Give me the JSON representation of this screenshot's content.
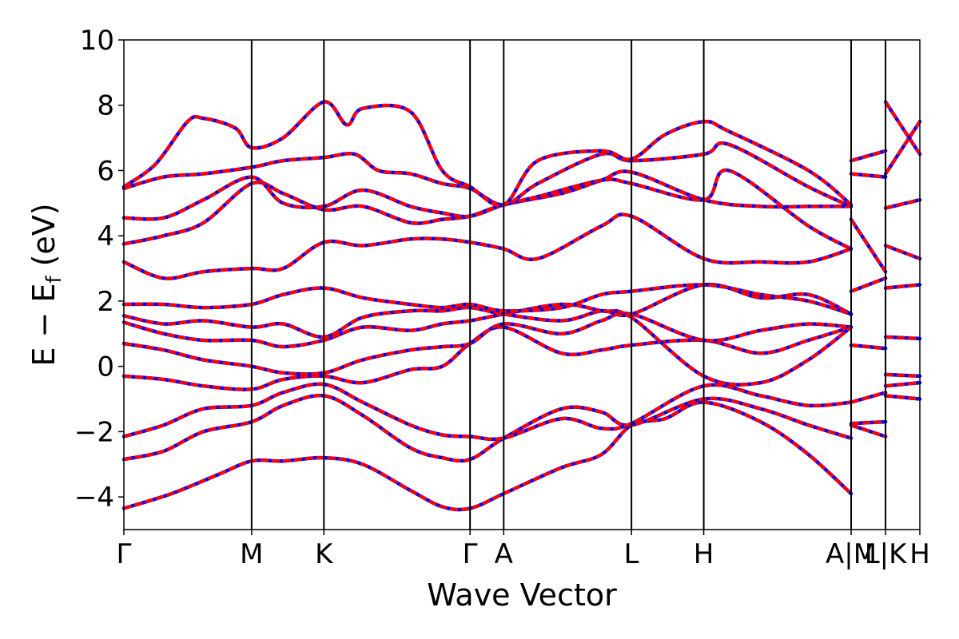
{
  "chart_data": {
    "type": "line",
    "xlabel": "Wave Vector",
    "ylabel": "E − E",
    "ylabel_sub": "f",
    "ylabel_unit": " (eV)",
    "ylim": [
      -5,
      10
    ],
    "y_ticks": [
      -4,
      -2,
      0,
      2,
      4,
      6,
      8,
      10
    ],
    "y_tick_labels": [
      "−4",
      "−2",
      "0",
      "2",
      "4",
      "6",
      "8",
      "10"
    ],
    "xlim": [
      0,
      1
    ],
    "k_points": [
      {
        "label": "Γ",
        "x": 0.0
      },
      {
        "label": "M",
        "x": 0.1605
      },
      {
        "label": "K",
        "x": 0.2513
      },
      {
        "label": "Γ",
        "x": 0.4349
      },
      {
        "label": "A",
        "x": 0.4772
      },
      {
        "label": "L",
        "x": 0.6377
      },
      {
        "label": "H",
        "x": 0.7285
      },
      {
        "label": "A|M",
        "x": 0.9137
      },
      {
        "label": "L|K",
        "x": 0.9569
      },
      {
        "label": "H",
        "x": 1.0
      }
    ],
    "series_colors": {
      "overlay": "#ff0000",
      "underlay": "#0000ff"
    },
    "bands": [
      [
        [
          0,
          -4.35
        ],
        [
          0.06,
          -3.9
        ],
        [
          0.12,
          -3.3
        ],
        [
          0.1605,
          -2.9
        ],
        [
          0.2,
          -2.9
        ],
        [
          0.2513,
          -2.8
        ],
        [
          0.3,
          -3.0
        ],
        [
          0.36,
          -3.8
        ],
        [
          0.4,
          -4.3
        ],
        [
          0.4349,
          -4.35
        ],
        [
          0.4772,
          -3.9
        ],
        [
          0.55,
          -3.1
        ],
        [
          0.6,
          -2.7
        ],
        [
          0.6377,
          -1.8
        ],
        [
          0.68,
          -1.6
        ],
        [
          0.7285,
          -1.1
        ],
        [
          0.8,
          -1.7
        ],
        [
          0.86,
          -2.7
        ],
        [
          0.9137,
          -3.9
        ]
      ],
      [
        [
          0,
          -2.85
        ],
        [
          0.05,
          -2.6
        ],
        [
          0.1,
          -2.0
        ],
        [
          0.1605,
          -1.7
        ],
        [
          0.2,
          -1.2
        ],
        [
          0.2513,
          -0.9
        ],
        [
          0.3,
          -1.5
        ],
        [
          0.36,
          -2.5
        ],
        [
          0.4,
          -2.8
        ],
        [
          0.4349,
          -2.85
        ],
        [
          0.4772,
          -2.2
        ],
        [
          0.55,
          -1.3
        ],
        [
          0.6,
          -1.4
        ],
        [
          0.6377,
          -1.8
        ],
        [
          0.7285,
          -1.0
        ],
        [
          0.8,
          -1.3
        ],
        [
          0.86,
          -1.8
        ],
        [
          0.9137,
          -2.2
        ]
      ],
      [
        [
          0,
          -2.15
        ],
        [
          0.05,
          -1.8
        ],
        [
          0.1,
          -1.3
        ],
        [
          0.1605,
          -1.2
        ],
        [
          0.2,
          -0.8
        ],
        [
          0.2513,
          -0.55
        ],
        [
          0.3,
          -1.1
        ],
        [
          0.36,
          -1.8
        ],
        [
          0.4,
          -2.1
        ],
        [
          0.4349,
          -2.15
        ],
        [
          0.4772,
          -2.2
        ],
        [
          0.55,
          -1.6
        ],
        [
          0.6,
          -1.9
        ],
        [
          0.6377,
          -1.75
        ],
        [
          0.7285,
          -0.6
        ],
        [
          0.8,
          -0.9
        ],
        [
          0.86,
          -1.2
        ],
        [
          0.9137,
          -1.1
        ]
      ],
      [
        [
          0,
          -0.3
        ],
        [
          0.05,
          -0.4
        ],
        [
          0.1,
          -0.6
        ],
        [
          0.1605,
          -0.7
        ],
        [
          0.2,
          -0.4
        ],
        [
          0.2513,
          -0.3
        ],
        [
          0.3,
          -0.5
        ],
        [
          0.36,
          -0.1
        ],
        [
          0.4,
          0.0
        ],
        [
          0.4349,
          0.7
        ],
        [
          0.4772,
          1.2
        ],
        [
          0.55,
          0.4
        ],
        [
          0.6,
          0.5
        ],
        [
          0.6377,
          0.65
        ],
        [
          0.7285,
          0.8
        ],
        [
          0.8,
          0.4
        ],
        [
          0.86,
          0.8
        ],
        [
          0.9137,
          1.2
        ]
      ],
      [
        [
          0,
          0.7
        ],
        [
          0.05,
          0.5
        ],
        [
          0.1,
          0.2
        ],
        [
          0.1605,
          0.0
        ],
        [
          0.2,
          -0.2
        ],
        [
          0.2513,
          -0.2
        ],
        [
          0.3,
          0.2
        ],
        [
          0.36,
          0.5
        ],
        [
          0.4,
          0.6
        ],
        [
          0.4349,
          0.7
        ],
        [
          0.4772,
          1.3
        ],
        [
          0.55,
          1.0
        ],
        [
          0.6,
          1.4
        ],
        [
          0.6377,
          1.6
        ],
        [
          0.7285,
          0.8
        ],
        [
          0.8,
          1.1
        ],
        [
          0.86,
          1.3
        ],
        [
          0.9137,
          1.2
        ]
      ],
      [
        [
          0,
          1.35
        ],
        [
          0.05,
          1.0
        ],
        [
          0.1,
          0.8
        ],
        [
          0.1605,
          0.8
        ],
        [
          0.2,
          0.6
        ],
        [
          0.2513,
          0.8
        ],
        [
          0.3,
          1.2
        ],
        [
          0.36,
          1.1
        ],
        [
          0.4,
          1.3
        ],
        [
          0.4349,
          1.4
        ],
        [
          0.4772,
          1.6
        ],
        [
          0.55,
          1.9
        ],
        [
          0.6,
          1.7
        ],
        [
          0.6377,
          1.5
        ],
        [
          0.7285,
          -0.3
        ],
        [
          0.8,
          -0.5
        ],
        [
          0.86,
          0.2
        ],
        [
          0.9137,
          1.2
        ]
      ],
      [
        [
          0,
          1.55
        ],
        [
          0.05,
          1.3
        ],
        [
          0.1,
          1.4
        ],
        [
          0.1605,
          1.2
        ],
        [
          0.2,
          1.3
        ],
        [
          0.2513,
          0.9
        ],
        [
          0.3,
          1.5
        ],
        [
          0.36,
          1.7
        ],
        [
          0.4,
          1.7
        ],
        [
          0.4349,
          1.8
        ],
        [
          0.4772,
          1.6
        ],
        [
          0.55,
          1.4
        ],
        [
          0.6,
          1.7
        ],
        [
          0.6377,
          1.6
        ],
        [
          0.7285,
          2.5
        ],
        [
          0.8,
          2.1
        ],
        [
          0.86,
          2.2
        ],
        [
          0.9137,
          1.6
        ]
      ],
      [
        [
          0,
          1.9
        ],
        [
          0.05,
          1.9
        ],
        [
          0.1,
          1.8
        ],
        [
          0.1605,
          1.9
        ],
        [
          0.2,
          2.2
        ],
        [
          0.2513,
          2.4
        ],
        [
          0.3,
          2.1
        ],
        [
          0.36,
          1.9
        ],
        [
          0.4,
          1.8
        ],
        [
          0.4349,
          1.9
        ],
        [
          0.4772,
          1.7
        ],
        [
          0.55,
          1.8
        ],
        [
          0.6,
          2.2
        ],
        [
          0.6377,
          2.3
        ],
        [
          0.7285,
          2.5
        ],
        [
          0.8,
          2.2
        ],
        [
          0.86,
          2.0
        ],
        [
          0.9137,
          1.6
        ]
      ],
      [
        [
          0,
          3.2
        ],
        [
          0.05,
          2.7
        ],
        [
          0.1,
          2.9
        ],
        [
          0.1605,
          3.0
        ],
        [
          0.2,
          3.0
        ],
        [
          0.2513,
          3.8
        ],
        [
          0.3,
          3.7
        ],
        [
          0.36,
          3.9
        ],
        [
          0.4,
          3.9
        ],
        [
          0.4349,
          3.8
        ],
        [
          0.4772,
          3.6
        ],
        [
          0.52,
          3.3
        ],
        [
          0.6,
          4.3
        ],
        [
          0.6377,
          4.6
        ],
        [
          0.7285,
          3.3
        ],
        [
          0.8,
          3.2
        ],
        [
          0.86,
          3.2
        ],
        [
          0.9137,
          3.6
        ]
      ],
      [
        [
          0,
          3.75
        ],
        [
          0.05,
          4.0
        ],
        [
          0.1,
          4.4
        ],
        [
          0.1605,
          5.6
        ],
        [
          0.2,
          5.3
        ],
        [
          0.2513,
          4.8
        ],
        [
          0.3,
          4.9
        ],
        [
          0.36,
          4.4
        ],
        [
          0.4,
          4.5
        ],
        [
          0.4349,
          4.6
        ],
        [
          0.4772,
          4.95
        ],
        [
          0.55,
          5.3
        ],
        [
          0.6,
          5.7
        ],
        [
          0.6377,
          5.95
        ],
        [
          0.7285,
          5.1
        ],
        [
          0.8,
          4.9
        ],
        [
          0.86,
          4.9
        ],
        [
          0.9137,
          4.9
        ]
      ],
      [
        [
          0,
          4.55
        ],
        [
          0.05,
          4.55
        ],
        [
          0.1,
          5.1
        ],
        [
          0.1605,
          5.8
        ],
        [
          0.2,
          5.0
        ],
        [
          0.2513,
          4.9
        ],
        [
          0.3,
          5.4
        ],
        [
          0.36,
          4.9
        ],
        [
          0.4,
          4.7
        ],
        [
          0.4349,
          4.6
        ],
        [
          0.4772,
          4.95
        ],
        [
          0.52,
          5.2
        ],
        [
          0.6,
          5.7
        ],
        [
          0.6377,
          5.6
        ],
        [
          0.7285,
          5.1
        ],
        [
          0.76,
          6.0
        ],
        [
          0.86,
          4.3
        ],
        [
          0.9137,
          3.6
        ]
      ],
      [
        [
          0,
          5.45
        ],
        [
          0.05,
          5.8
        ],
        [
          0.1,
          5.9
        ],
        [
          0.1605,
          6.1
        ],
        [
          0.2,
          6.3
        ],
        [
          0.2513,
          6.4
        ],
        [
          0.29,
          6.5
        ],
        [
          0.32,
          6.0
        ],
        [
          0.36,
          5.9
        ],
        [
          0.4,
          5.6
        ],
        [
          0.4349,
          5.45
        ],
        [
          0.4772,
          4.95
        ],
        [
          0.52,
          5.6
        ],
        [
          0.6,
          6.5
        ],
        [
          0.6377,
          6.3
        ],
        [
          0.7285,
          6.5
        ],
        [
          0.76,
          6.8
        ],
        [
          0.86,
          5.5
        ],
        [
          0.9137,
          4.9
        ]
      ],
      [
        [
          0,
          5.5
        ],
        [
          0.04,
          6.2
        ],
        [
          0.08,
          7.5
        ],
        [
          0.1,
          7.6
        ],
        [
          0.14,
          7.3
        ],
        [
          0.1605,
          6.7
        ],
        [
          0.2,
          7.0
        ],
        [
          0.2513,
          8.1
        ],
        [
          0.28,
          7.4
        ],
        [
          0.3,
          7.9
        ],
        [
          0.36,
          7.8
        ],
        [
          0.4,
          6.0
        ],
        [
          0.4349,
          5.5
        ],
        [
          0.4772,
          4.95
        ],
        [
          0.52,
          6.3
        ],
        [
          0.6,
          6.6
        ],
        [
          0.6377,
          6.35
        ],
        [
          0.68,
          7.1
        ],
        [
          0.7285,
          7.5
        ],
        [
          0.76,
          7.2
        ],
        [
          0.86,
          6.0
        ],
        [
          0.9137,
          4.95
        ]
      ],
      [
        [
          0.9137,
          6.3
        ],
        [
          0.9569,
          6.6
        ]
      ],
      [
        [
          0.9137,
          5.9
        ],
        [
          0.9569,
          5.8
        ]
      ],
      [
        [
          0.9137,
          4.5
        ],
        [
          0.9569,
          2.9
        ]
      ],
      [
        [
          0.9569,
          8.1
        ],
        [
          1.0,
          6.5
        ]
      ],
      [
        [
          0.9569,
          5.9
        ],
        [
          1.0,
          7.5
        ]
      ],
      [
        [
          0.9569,
          4.85
        ],
        [
          1.0,
          5.1
        ]
      ],
      [
        [
          0.9569,
          3.7
        ],
        [
          1.0,
          3.3
        ]
      ],
      [
        [
          0.9569,
          2.4
        ],
        [
          1.0,
          2.5
        ]
      ],
      [
        [
          0.9569,
          0.9
        ],
        [
          1.0,
          0.85
        ]
      ],
      [
        [
          0.9569,
          -0.25
        ],
        [
          1.0,
          -0.3
        ]
      ],
      [
        [
          0.9569,
          -0.6
        ],
        [
          1.0,
          -0.5
        ]
      ],
      [
        [
          0.9569,
          -0.9
        ],
        [
          1.0,
          -1.0
        ]
      ],
      [
        [
          0.9137,
          2.3
        ],
        [
          0.9569,
          2.7
        ]
      ],
      [
        [
          0.9137,
          0.65
        ],
        [
          0.9569,
          0.55
        ]
      ],
      [
        [
          0.9137,
          -1.1
        ],
        [
          0.9569,
          -0.8
        ]
      ],
      [
        [
          0.9137,
          -1.8
        ],
        [
          0.9569,
          -2.15
        ]
      ],
      [
        [
          0.9137,
          -1.75
        ],
        [
          0.9569,
          -1.7
        ]
      ]
    ]
  }
}
